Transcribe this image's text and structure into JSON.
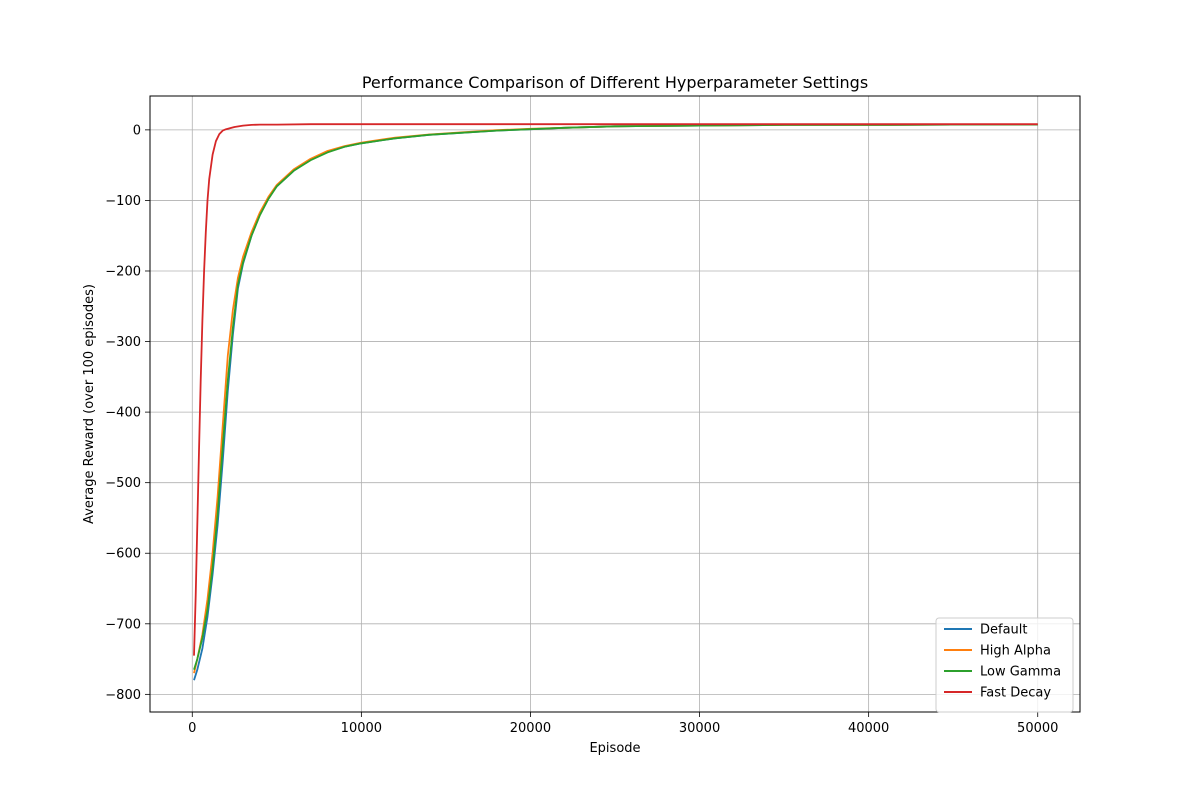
{
  "chart_data": {
    "type": "line",
    "title": "Performance Comparison of Different Hyperparameter Settings",
    "xlabel": "Episode",
    "ylabel": "Average Reward (over 100 episodes)",
    "xlim": [
      -2500,
      52500
    ],
    "ylim": [
      -825,
      48
    ],
    "xticks": [
      0,
      10000,
      20000,
      30000,
      40000,
      50000
    ],
    "yticks": [
      -800,
      -700,
      -600,
      -500,
      -400,
      -300,
      -200,
      -100,
      0
    ],
    "xtick_labels": [
      "0",
      "10000",
      "20000",
      "30000",
      "40000",
      "50000"
    ],
    "ytick_labels": [
      "−800",
      "−700",
      "−600",
      "−500",
      "−400",
      "−300",
      "−200",
      "−100",
      "0"
    ],
    "grid": true,
    "legend_position": "lower right",
    "series": [
      {
        "name": "Default",
        "color": "#1f77b4",
        "x": [
          100,
          300,
          600,
          900,
          1200,
          1500,
          1800,
          2100,
          2400,
          2700,
          3000,
          3500,
          4000,
          4500,
          5000,
          6000,
          7000,
          8000,
          9000,
          10000,
          12000,
          14000,
          16000,
          18000,
          20000,
          22000,
          25000,
          30000,
          35000,
          40000,
          45000,
          50000
        ],
        "y": [
          -780,
          -765,
          -735,
          -690,
          -630,
          -560,
          -470,
          -370,
          -290,
          -225,
          -190,
          -150,
          -120,
          -97,
          -80,
          -58,
          -42,
          -31,
          -24,
          -19,
          -12,
          -7,
          -4,
          -1,
          1,
          3,
          5,
          6,
          7,
          7,
          7.5,
          7.5
        ]
      },
      {
        "name": "High Alpha",
        "color": "#ff7f0e",
        "x": [
          100,
          300,
          600,
          900,
          1200,
          1500,
          1800,
          2100,
          2400,
          2700,
          3000,
          3500,
          4000,
          4500,
          5000,
          6000,
          7000,
          8000,
          9000,
          10000,
          12000,
          14000,
          16000,
          18000,
          20000,
          22000,
          25000,
          30000,
          35000,
          40000,
          45000,
          50000
        ],
        "y": [
          -770,
          -750,
          -715,
          -665,
          -600,
          -520,
          -420,
          -320,
          -255,
          -210,
          -180,
          -145,
          -117,
          -95,
          -78,
          -56,
          -41,
          -30,
          -23,
          -18,
          -11,
          -6.5,
          -3.5,
          -0.5,
          1.5,
          3,
          5,
          6,
          7,
          7,
          7.5,
          7.5
        ]
      },
      {
        "name": "Low Gamma",
        "color": "#2ca02c",
        "x": [
          100,
          300,
          600,
          900,
          1200,
          1500,
          1800,
          2100,
          2400,
          2700,
          3000,
          3500,
          4000,
          4500,
          5000,
          6000,
          7000,
          8000,
          9000,
          10000,
          12000,
          14000,
          16000,
          18000,
          20000,
          22000,
          25000,
          30000,
          35000,
          40000,
          45000,
          50000
        ],
        "y": [
          -765,
          -750,
          -720,
          -680,
          -620,
          -545,
          -450,
          -355,
          -280,
          -220,
          -188,
          -150,
          -121,
          -98,
          -80,
          -58,
          -43,
          -32,
          -24,
          -19,
          -12,
          -7,
          -4,
          -1,
          1,
          3,
          5,
          6,
          7,
          7,
          7.5,
          7.5
        ]
      },
      {
        "name": "Fast Decay",
        "color": "#d62728",
        "x": [
          100,
          200,
          300,
          400,
          500,
          600,
          700,
          800,
          900,
          1000,
          1200,
          1400,
          1600,
          1800,
          2000,
          2500,
          3000,
          3500,
          4000,
          5000,
          7000,
          10000,
          15000,
          20000,
          30000,
          40000,
          50000
        ],
        "y": [
          -745,
          -660,
          -560,
          -455,
          -355,
          -270,
          -200,
          -145,
          -100,
          -70,
          -35,
          -16,
          -6,
          -1,
          1,
          4,
          6,
          7,
          7.5,
          7.5,
          8,
          8,
          8,
          8,
          8,
          8,
          8
        ]
      }
    ]
  }
}
